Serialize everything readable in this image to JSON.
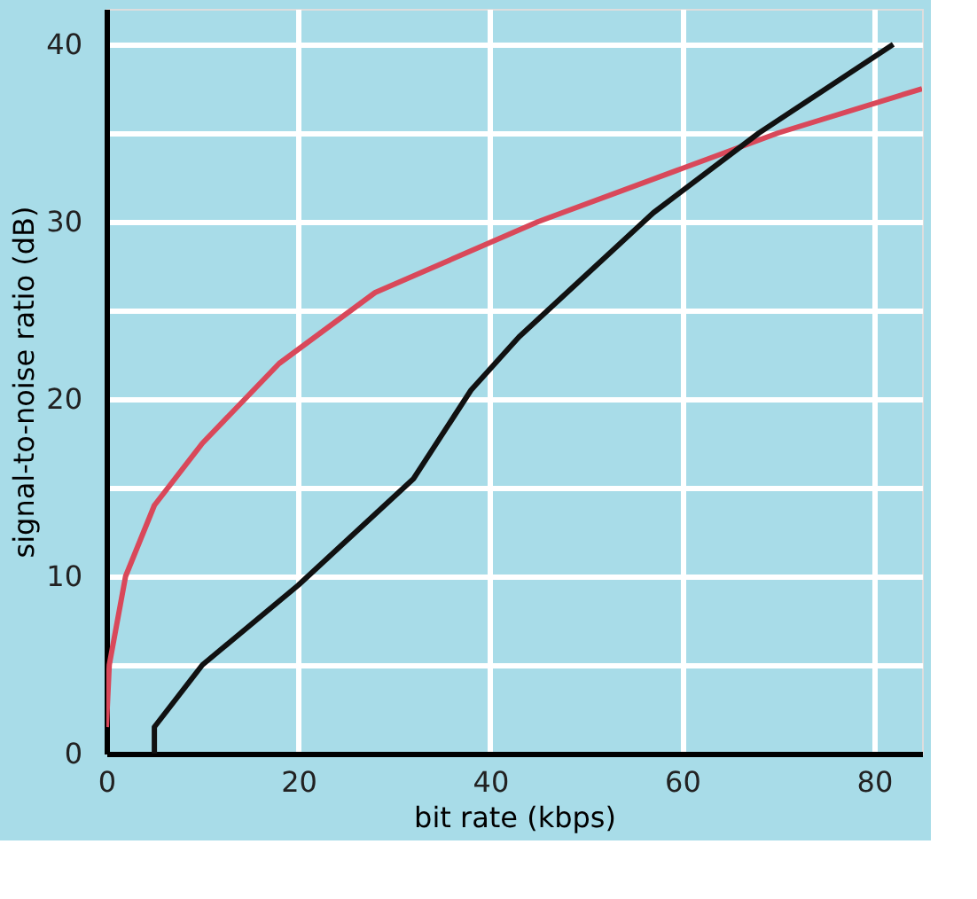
{
  "chart_data": {
    "type": "line",
    "xlabel": "bit rate (kbps)",
    "ylabel": "signal-to-noise ratio (dB)",
    "xlim": [
      0,
      85
    ],
    "ylim": [
      0,
      42
    ],
    "xticks": [
      0,
      20,
      40,
      60,
      80
    ],
    "yticks": [
      0,
      {
        "value": 5,
        "label": null
      },
      10,
      {
        "value": 15,
        "label": null
      },
      20,
      {
        "value": 25,
        "label": null
      },
      30,
      {
        "value": 35,
        "label": null
      },
      40
    ],
    "grid": true,
    "legend": false,
    "line_style": "solid",
    "marker": "none",
    "series": [
      {
        "color": "#d9485a",
        "x": [
          0,
          0.3,
          2,
          5,
          10,
          18,
          28,
          45,
          60,
          70,
          85
        ],
        "values": [
          1.5,
          5,
          10,
          14,
          17.5,
          22,
          26,
          30,
          33,
          35,
          37.5
        ]
      },
      {
        "color": "#111111",
        "x": [
          5,
          5,
          10,
          20,
          32,
          38,
          43,
          50,
          57,
          68,
          82
        ],
        "values": [
          0,
          1.5,
          5,
          9.5,
          15.5,
          20.5,
          23.5,
          27,
          30.5,
          35,
          40
        ]
      }
    ]
  }
}
